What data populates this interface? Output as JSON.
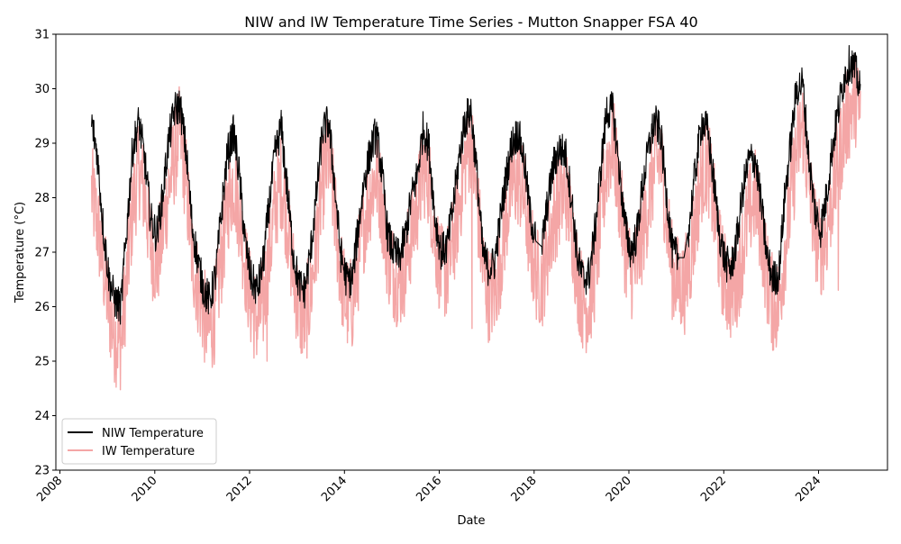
{
  "chart_data": {
    "type": "line",
    "title": "NIW and IW Temperature Time Series - Mutton Snapper FSA 40",
    "xlabel": "Date",
    "ylabel": "Temperature (°C)",
    "xlim": [
      "2007-12-01",
      "2025-06-15"
    ],
    "ylim": [
      23,
      31
    ],
    "x_ticks": [
      "2008",
      "2010",
      "2012",
      "2014",
      "2016",
      "2018",
      "2020",
      "2022",
      "2024"
    ],
    "y_ticks": [
      "23",
      "24",
      "25",
      "26",
      "27",
      "28",
      "29",
      "30",
      "31"
    ],
    "grid": false,
    "legend_position": "lower-left",
    "series": [
      {
        "name": "NIW Temperature",
        "color": "#000000",
        "opacity": 1.0,
        "x": [
          "2008-09-01",
          "2008-10-15",
          "2008-12-01",
          "2009-01-15",
          "2009-03-01",
          "2009-04-15",
          "2009-06-01",
          "2009-07-15",
          "2009-09-01",
          "2009-10-15",
          "2009-12-01",
          "2010-01-15",
          "2010-03-01",
          "2010-04-15",
          "2010-06-01",
          "2010-07-15",
          "2010-09-01",
          "2010-10-15",
          "2010-12-01",
          "2011-01-15",
          "2011-03-01",
          "2011-04-15",
          "2011-06-01",
          "2011-07-15",
          "2011-09-01",
          "2011-10-15",
          "2011-12-01",
          "2012-01-15",
          "2012-03-01",
          "2012-04-15",
          "2012-06-01",
          "2012-07-15",
          "2012-09-01",
          "2012-10-15",
          "2012-12-01",
          "2013-01-15",
          "2013-03-01",
          "2013-04-15",
          "2013-06-01",
          "2013-07-15",
          "2013-09-01",
          "2013-10-15",
          "2013-12-01",
          "2014-01-15",
          "2014-03-01",
          "2014-04-15",
          "2014-06-01",
          "2014-07-15",
          "2014-09-01",
          "2014-10-15",
          "2014-12-01",
          "2015-01-15",
          "2015-03-01",
          "2015-04-15",
          "2015-06-01",
          "2015-07-15",
          "2015-09-01",
          "2015-10-15",
          "2015-12-01",
          "2016-01-15",
          "2016-03-01",
          "2016-04-15",
          "2016-06-01",
          "2016-07-15",
          "2016-09-01",
          "2016-10-15",
          "2016-12-01",
          "2017-01-15",
          "2017-03-01",
          "2017-04-15",
          "2017-06-01",
          "2017-07-15",
          "2017-09-01",
          "2017-10-15",
          "2017-12-01",
          "2018-01-15",
          "2018-03-01",
          "2018-04-15",
          "2018-06-01",
          "2018-07-15",
          "2018-09-01",
          "2018-10-15",
          "2018-12-01",
          "2019-01-15",
          "2019-03-01",
          "2019-04-15",
          "2019-06-01",
          "2019-07-15",
          "2019-09-01",
          "2019-10-15",
          "2019-12-01",
          "2020-01-15",
          "2020-03-01",
          "2020-04-15",
          "2020-06-01",
          "2020-07-15",
          "2020-09-01",
          "2020-10-15",
          "2020-12-01",
          "2021-01-15",
          "2021-03-01",
          "2021-04-15",
          "2021-06-01",
          "2021-07-15",
          "2021-09-01",
          "2021-10-15",
          "2021-12-01",
          "2022-01-15",
          "2022-03-01",
          "2022-04-15",
          "2022-06-01",
          "2022-07-15",
          "2022-09-01",
          "2022-10-15",
          "2022-12-01",
          "2023-01-15",
          "2023-03-01",
          "2023-04-15",
          "2023-06-01",
          "2023-07-15",
          "2023-09-01",
          "2023-10-15",
          "2023-12-01",
          "2024-01-15",
          "2024-03-01",
          "2024-04-15",
          "2024-06-01",
          "2024-07-15",
          "2024-09-01",
          "2024-10-15",
          "2024-11-20"
        ],
        "y": [
          29.4,
          28.8,
          27.4,
          26.5,
          26.1,
          26.0,
          27.5,
          28.9,
          29.4,
          28.7,
          27.6,
          27.3,
          28.0,
          29.0,
          29.6,
          29.7,
          28.8,
          27.5,
          26.8,
          26.3,
          26.1,
          26.6,
          27.8,
          28.8,
          29.2,
          28.4,
          27.1,
          26.5,
          26.3,
          26.8,
          27.9,
          28.8,
          29.3,
          28.2,
          27.0,
          26.4,
          26.3,
          27.0,
          28.1,
          29.2,
          29.4,
          28.3,
          27.0,
          26.5,
          26.5,
          27.4,
          28.3,
          28.8,
          29.2,
          28.5,
          27.3,
          27.0,
          26.9,
          27.3,
          28.0,
          28.4,
          29.3,
          28.9,
          27.6,
          27.0,
          27.1,
          27.8,
          28.7,
          29.4,
          29.6,
          28.5,
          27.0,
          26.7,
          26.8,
          27.6,
          28.4,
          29.0,
          29.2,
          28.7,
          27.7,
          27.2,
          27.1,
          27.9,
          28.6,
          28.9,
          28.8,
          28.0,
          26.9,
          26.5,
          26.6,
          27.4,
          28.6,
          29.6,
          29.6,
          28.6,
          27.5,
          27.0,
          27.3,
          28.2,
          28.9,
          29.4,
          29.2,
          28.1,
          27.0,
          26.9,
          26.9,
          27.6,
          28.6,
          29.4,
          29.2,
          28.3,
          27.3,
          26.8,
          26.7,
          27.3,
          28.2,
          28.7,
          28.7,
          27.9,
          26.9,
          26.5,
          26.6,
          28.0,
          29.0,
          30.0,
          30.1,
          28.8,
          27.8,
          27.4,
          28.0,
          28.9,
          29.6,
          30.2,
          30.5,
          30.3,
          29.9
        ],
        "annotations": {
          "gap_segments": [
            [
              "2018-01-10",
              "2018-03-01"
            ],
            [
              "2021-01-20",
              "2021-04-01"
            ]
          ]
        }
      },
      {
        "name": "IW Temperature",
        "color": "#f08080",
        "opacity": 0.7,
        "x": [
          "2008-09-01",
          "2008-10-15",
          "2008-12-01",
          "2009-01-15",
          "2009-03-01",
          "2009-04-15",
          "2009-06-01",
          "2009-07-15",
          "2009-09-01",
          "2009-10-15",
          "2009-12-01",
          "2010-01-15",
          "2010-03-01",
          "2010-04-15",
          "2010-06-01",
          "2010-07-15",
          "2010-09-01",
          "2010-10-15",
          "2010-12-01",
          "2011-01-15",
          "2011-03-01",
          "2011-04-15",
          "2011-06-01",
          "2011-07-15",
          "2011-09-01",
          "2011-10-15",
          "2011-12-01",
          "2012-01-15",
          "2012-03-01",
          "2012-04-15",
          "2012-06-01",
          "2012-07-15",
          "2012-09-01",
          "2012-10-15",
          "2012-12-01",
          "2013-01-15",
          "2013-03-01",
          "2013-04-15",
          "2013-06-01",
          "2013-07-15",
          "2013-09-01",
          "2013-10-15",
          "2013-12-01",
          "2014-01-15",
          "2014-03-01",
          "2014-04-15",
          "2014-06-01",
          "2014-07-15",
          "2014-09-01",
          "2014-10-15",
          "2014-12-01",
          "2015-01-15",
          "2015-03-01",
          "2015-04-15",
          "2015-06-01",
          "2015-07-15",
          "2015-09-01",
          "2015-10-15",
          "2015-12-01",
          "2016-01-15",
          "2016-03-01",
          "2016-04-15",
          "2016-06-01",
          "2016-07-15",
          "2016-09-01",
          "2016-10-15",
          "2016-12-01",
          "2017-01-15",
          "2017-03-01",
          "2017-04-15",
          "2017-06-01",
          "2017-07-15",
          "2017-09-01",
          "2017-10-15",
          "2017-12-01",
          "2018-01-15",
          "2018-03-01",
          "2018-04-15",
          "2018-06-01",
          "2018-07-15",
          "2018-09-01",
          "2018-10-15",
          "2018-12-01",
          "2019-01-15",
          "2019-03-01",
          "2019-04-15",
          "2019-06-01",
          "2019-07-15",
          "2019-09-01",
          "2019-10-15",
          "2019-12-01",
          "2020-01-15",
          "2020-03-01",
          "2020-04-15",
          "2020-06-01",
          "2020-07-15",
          "2020-09-01",
          "2020-10-15",
          "2020-12-01",
          "2021-01-15",
          "2021-03-01",
          "2021-04-15",
          "2021-06-01",
          "2021-07-15",
          "2021-09-01",
          "2021-10-15",
          "2021-12-01",
          "2022-01-15",
          "2022-03-01",
          "2022-04-15",
          "2022-06-01",
          "2022-07-15",
          "2022-09-01",
          "2022-10-15",
          "2022-12-01",
          "2023-01-15",
          "2023-03-01",
          "2023-04-15",
          "2023-06-01",
          "2023-07-15",
          "2023-09-01",
          "2023-10-15",
          "2023-12-01",
          "2024-01-15",
          "2024-03-01",
          "2024-04-15",
          "2024-06-01",
          "2024-07-15",
          "2024-09-01",
          "2024-10-15",
          "2024-11-20"
        ],
        "y": [
          28.4,
          27.8,
          27.0,
          26.2,
          25.7,
          25.6,
          26.8,
          28.1,
          28.8,
          28.3,
          27.4,
          27.0,
          27.6,
          28.4,
          29.0,
          29.5,
          28.5,
          27.2,
          26.6,
          26.1,
          25.8,
          26.2,
          27.2,
          28.1,
          28.6,
          28.0,
          27.0,
          26.3,
          26.0,
          26.3,
          27.2,
          28.1,
          28.6,
          27.9,
          26.9,
          26.2,
          26.0,
          26.5,
          27.5,
          28.5,
          29.0,
          28.1,
          26.9,
          26.3,
          26.3,
          27.0,
          27.8,
          28.3,
          28.7,
          28.2,
          27.2,
          26.9,
          26.7,
          27.0,
          27.6,
          28.1,
          28.8,
          28.6,
          27.5,
          26.9,
          26.9,
          27.4,
          28.1,
          28.9,
          29.3,
          28.3,
          27.0,
          26.5,
          26.5,
          27.1,
          27.9,
          28.5,
          28.6,
          28.3,
          27.4,
          26.9,
          26.7,
          27.3,
          27.9,
          28.2,
          28.4,
          27.8,
          26.8,
          26.3,
          26.3,
          26.9,
          27.9,
          28.9,
          29.3,
          28.4,
          27.4,
          26.9,
          27.0,
          27.6,
          28.2,
          28.8,
          29.0,
          28.0,
          26.9,
          26.7,
          26.6,
          27.1,
          27.9,
          28.7,
          28.9,
          28.1,
          27.2,
          26.7,
          26.5,
          26.8,
          27.4,
          28.0,
          28.3,
          27.7,
          26.8,
          26.3,
          26.3,
          27.3,
          28.2,
          29.1,
          29.6,
          28.6,
          27.7,
          27.3,
          27.6,
          28.3,
          28.9,
          29.5,
          29.9,
          30.1,
          29.7
        ],
        "annotations": {
          "low_outliers": [
            [
              "2012-05-15",
              25.0
            ],
            [
              "2016-09-10",
              25.6
            ],
            [
              "2024-06-01",
              26.3
            ]
          ]
        }
      }
    ]
  }
}
